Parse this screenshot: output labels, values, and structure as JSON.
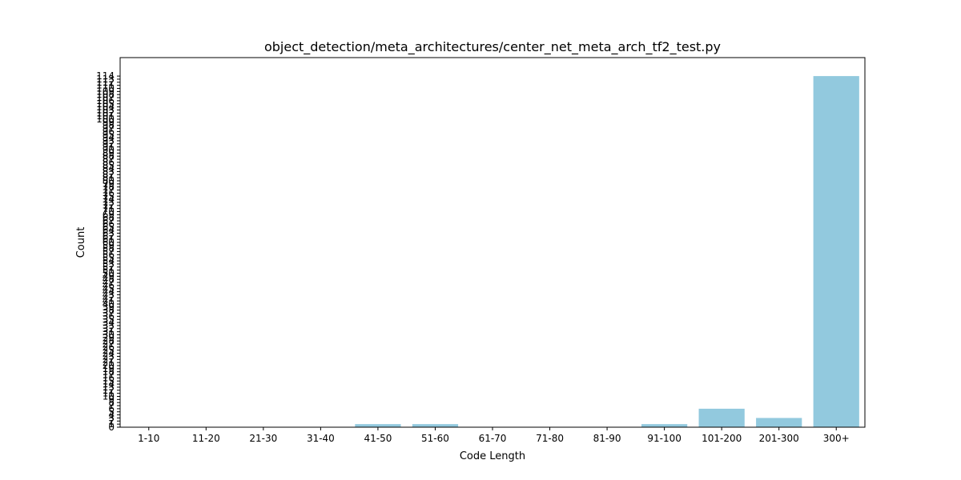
{
  "chart_data": {
    "type": "bar",
    "title": "object_detection/meta_architectures/center_net_meta_arch_tf2_test.py",
    "xlabel": "Code Length",
    "ylabel": "Count",
    "categories": [
      "1-10",
      "11-20",
      "21-30",
      "31-40",
      "41-50",
      "51-60",
      "61-70",
      "71-80",
      "81-90",
      "91-100",
      "101-200",
      "201-300",
      "300+"
    ],
    "values": [
      0,
      0,
      0,
      0,
      1,
      1,
      0,
      0,
      0,
      1,
      6,
      3,
      114
    ],
    "ylim": [
      0,
      120
    ],
    "yticks": [
      0,
      1,
      2,
      3,
      4,
      5,
      6,
      7,
      8,
      9,
      10,
      11,
      12,
      13,
      14,
      15,
      16,
      17,
      18,
      19,
      20,
      21,
      22,
      23,
      24,
      25,
      26,
      27,
      28,
      29,
      30,
      31,
      32,
      33,
      34,
      35,
      36,
      37,
      38,
      39,
      40,
      41,
      42,
      43,
      44,
      45,
      46,
      47,
      48,
      49,
      50,
      51,
      52,
      53,
      54,
      55,
      56,
      57,
      58,
      59,
      60,
      61,
      62,
      63,
      64,
      65,
      66,
      67,
      68,
      69,
      70,
      71,
      72,
      73,
      74,
      75,
      76,
      77,
      78,
      79,
      80,
      81,
      82,
      83,
      84,
      85,
      86,
      87,
      88,
      89,
      90,
      91,
      92,
      93,
      94,
      95,
      96,
      97,
      98,
      99,
      100,
      101,
      102,
      103,
      104,
      105,
      106,
      107,
      108,
      109,
      110,
      111,
      112,
      113,
      114
    ],
    "bar_color": "#92c9de",
    "grid": false,
    "legend": "none"
  }
}
